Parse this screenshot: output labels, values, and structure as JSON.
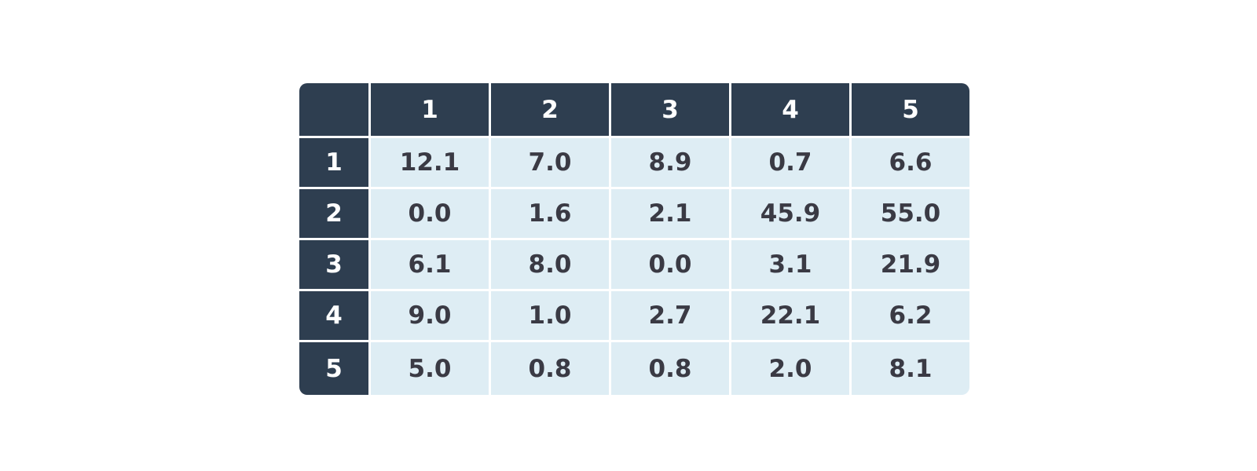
{
  "chart_data": {
    "type": "table",
    "column_headers": [
      "1",
      "2",
      "3",
      "4",
      "5"
    ],
    "row_headers": [
      "1",
      "2",
      "3",
      "4",
      "5"
    ],
    "rows": [
      [
        "12.1",
        "7.0",
        "8.9",
        "0.7",
        "6.6"
      ],
      [
        "0.0",
        "1.6",
        "2.1",
        "45.9",
        "55.0"
      ],
      [
        "6.1",
        "8.0",
        "0.0",
        "3.1",
        "21.9"
      ],
      [
        "9.0",
        "1.0",
        "2.7",
        "22.1",
        "6.2"
      ],
      [
        "5.0",
        "0.8",
        "0.8",
        "2.0",
        "8.1"
      ]
    ],
    "colors": {
      "header_background": "#2e3e50",
      "header_text": "#ffffff",
      "cell_background": "#deedf4",
      "cell_text": "#3a3a44"
    }
  }
}
